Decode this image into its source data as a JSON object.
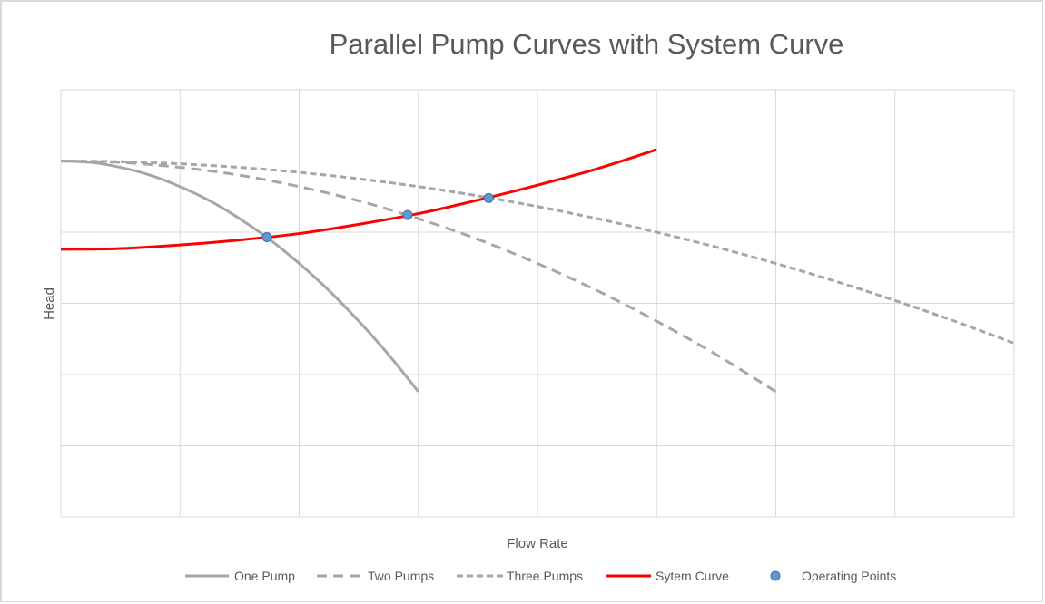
{
  "chart_data": {
    "type": "line",
    "title": "Parallel Pump Curves with System Curve",
    "xlabel": "Flow Rate",
    "ylabel": "Head",
    "x_tick_labels_shown": false,
    "y_tick_labels_shown": false,
    "xlim": [
      0,
      8
    ],
    "ylim": [
      0,
      6
    ],
    "x_gridlines": [
      0,
      1,
      2,
      3,
      4,
      5,
      6,
      7,
      8
    ],
    "y_gridlines": [
      0,
      1,
      2,
      3,
      4,
      5,
      6
    ],
    "grid": true,
    "units_note": "axes unlabeled; values in gridline units",
    "legend_position": "bottom",
    "series": [
      {
        "name": "One Pump",
        "color": "#a6a6a6",
        "dash": "solid",
        "x": [
          0,
          0.25,
          0.5,
          0.75,
          1,
          1.25,
          1.5,
          1.75,
          2,
          2.25,
          2.5,
          2.75,
          3
        ],
        "y": [
          5.0,
          4.98,
          4.91,
          4.8,
          4.64,
          4.44,
          4.19,
          3.9,
          3.56,
          3.18,
          2.75,
          2.28,
          1.76
        ]
      },
      {
        "name": "Two Pumps",
        "color": "#a6a6a6",
        "dash": "long-dash",
        "x": [
          0,
          0.5,
          1,
          1.5,
          2,
          2.5,
          3,
          3.5,
          4,
          4.5,
          5,
          5.5,
          6
        ],
        "y": [
          5.0,
          4.98,
          4.91,
          4.8,
          4.64,
          4.44,
          4.19,
          3.9,
          3.56,
          3.18,
          2.75,
          2.28,
          1.76
        ]
      },
      {
        "name": "Three Pumps",
        "color": "#a6a6a6",
        "dash": "short-dash",
        "x": [
          0,
          0.5,
          1,
          1.5,
          2,
          2.5,
          3,
          3.5,
          4,
          4.5,
          5,
          5.5,
          6,
          6.5,
          7,
          7.5,
          8
        ],
        "y": [
          5.0,
          4.99,
          4.96,
          4.91,
          4.84,
          4.75,
          4.64,
          4.51,
          4.36,
          4.19,
          4.0,
          3.79,
          3.56,
          3.31,
          3.04,
          2.75,
          2.44
        ]
      },
      {
        "name": "Sytem Curve",
        "color": "#ff0000",
        "dash": "solid",
        "x": [
          0,
          0.5,
          1,
          1.5,
          2,
          2.5,
          3,
          3.5,
          4,
          4.5,
          5
        ],
        "y": [
          3.76,
          3.77,
          3.82,
          3.89,
          3.98,
          4.11,
          4.26,
          4.45,
          4.66,
          4.89,
          5.16
        ]
      }
    ],
    "operating_points": {
      "name": "Operating Points",
      "color": "#5b9bd5",
      "points": [
        {
          "x": 1.73,
          "y": 3.93
        },
        {
          "x": 2.91,
          "y": 4.24
        },
        {
          "x": 3.59,
          "y": 4.48
        }
      ]
    }
  }
}
